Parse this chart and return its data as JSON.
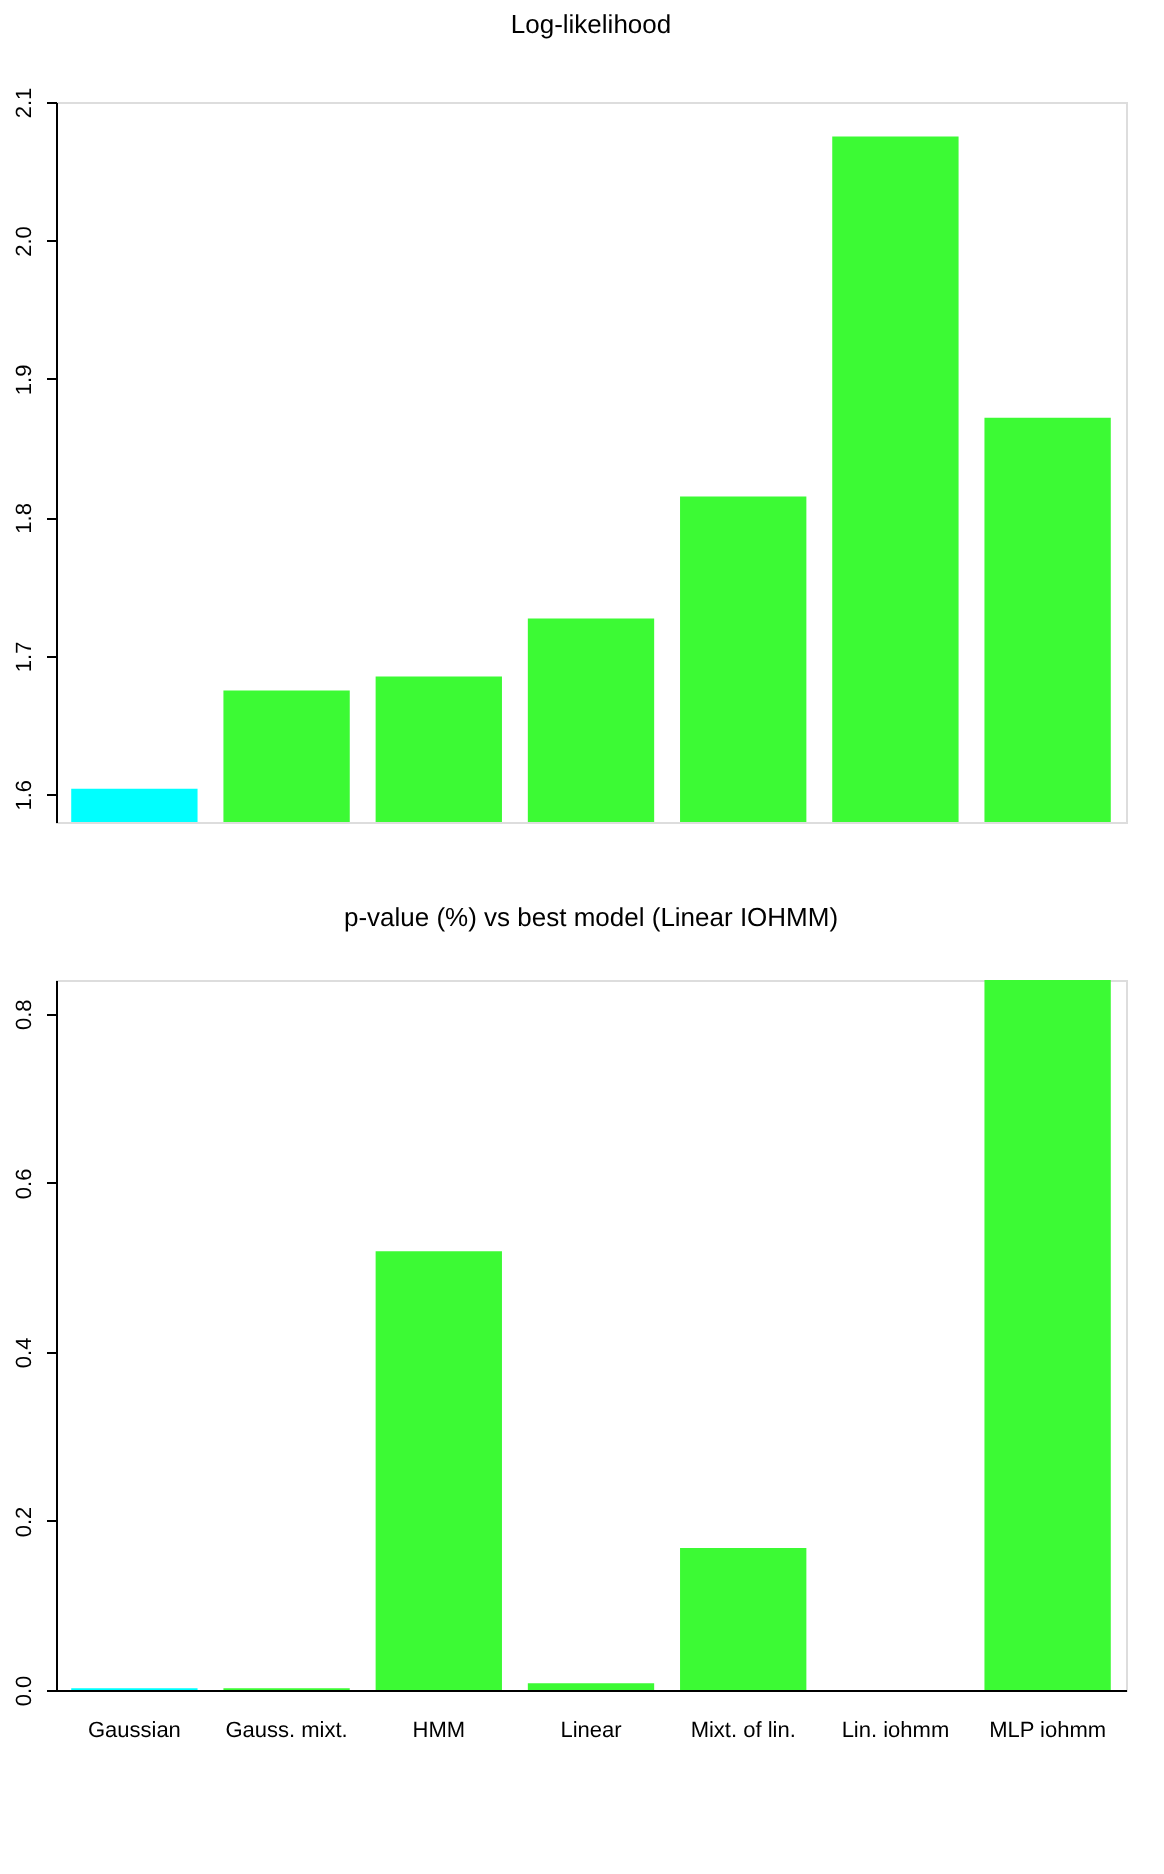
{
  "chart_data": [
    {
      "type": "bar",
      "title": "Log-likelihood",
      "categories": [
        null,
        null,
        null,
        null,
        null,
        null,
        null
      ],
      "values": [
        1.604,
        1.675,
        1.685,
        1.727,
        1.815,
        2.075,
        1.872
      ],
      "colors": [
        "#00ffff",
        "#3cfa34",
        "#3cfa34",
        "#3cfa34",
        "#3cfa34",
        "#3cfa34",
        "#3cfa34"
      ],
      "ylim": [
        1.58,
        2.1
      ],
      "yticks": [
        1.6,
        1.7,
        1.8,
        1.9,
        {
          "value": 2,
          "label": "2.0"
        },
        2.1
      ],
      "tick_labels": "y",
      "grid": false
    },
    {
      "type": "bar",
      "title": "p-value (%)  vs  best model (Linear IOHMM)",
      "categories": [
        "Gaussian",
        "Gauss. mixt.",
        "HMM",
        "Linear",
        "Mixt. of lin.",
        "Lin. iohmm",
        "MLP iohmm"
      ],
      "values": [
        0.002,
        0.002,
        0.519,
        0.008,
        0.168,
        0,
        0.84
      ],
      "colors": [
        "#00ffff",
        "#3cfa34",
        "#3cfa34",
        "#3cfa34",
        "#3cfa34",
        "#3cfa34",
        "#3cfa34"
      ],
      "ylim": [
        0,
        0.84
      ],
      "yticks": [
        {
          "value": 0,
          "label": "0.0"
        },
        0.2,
        0.4,
        0.6,
        0.8
      ],
      "grid": false
    }
  ]
}
